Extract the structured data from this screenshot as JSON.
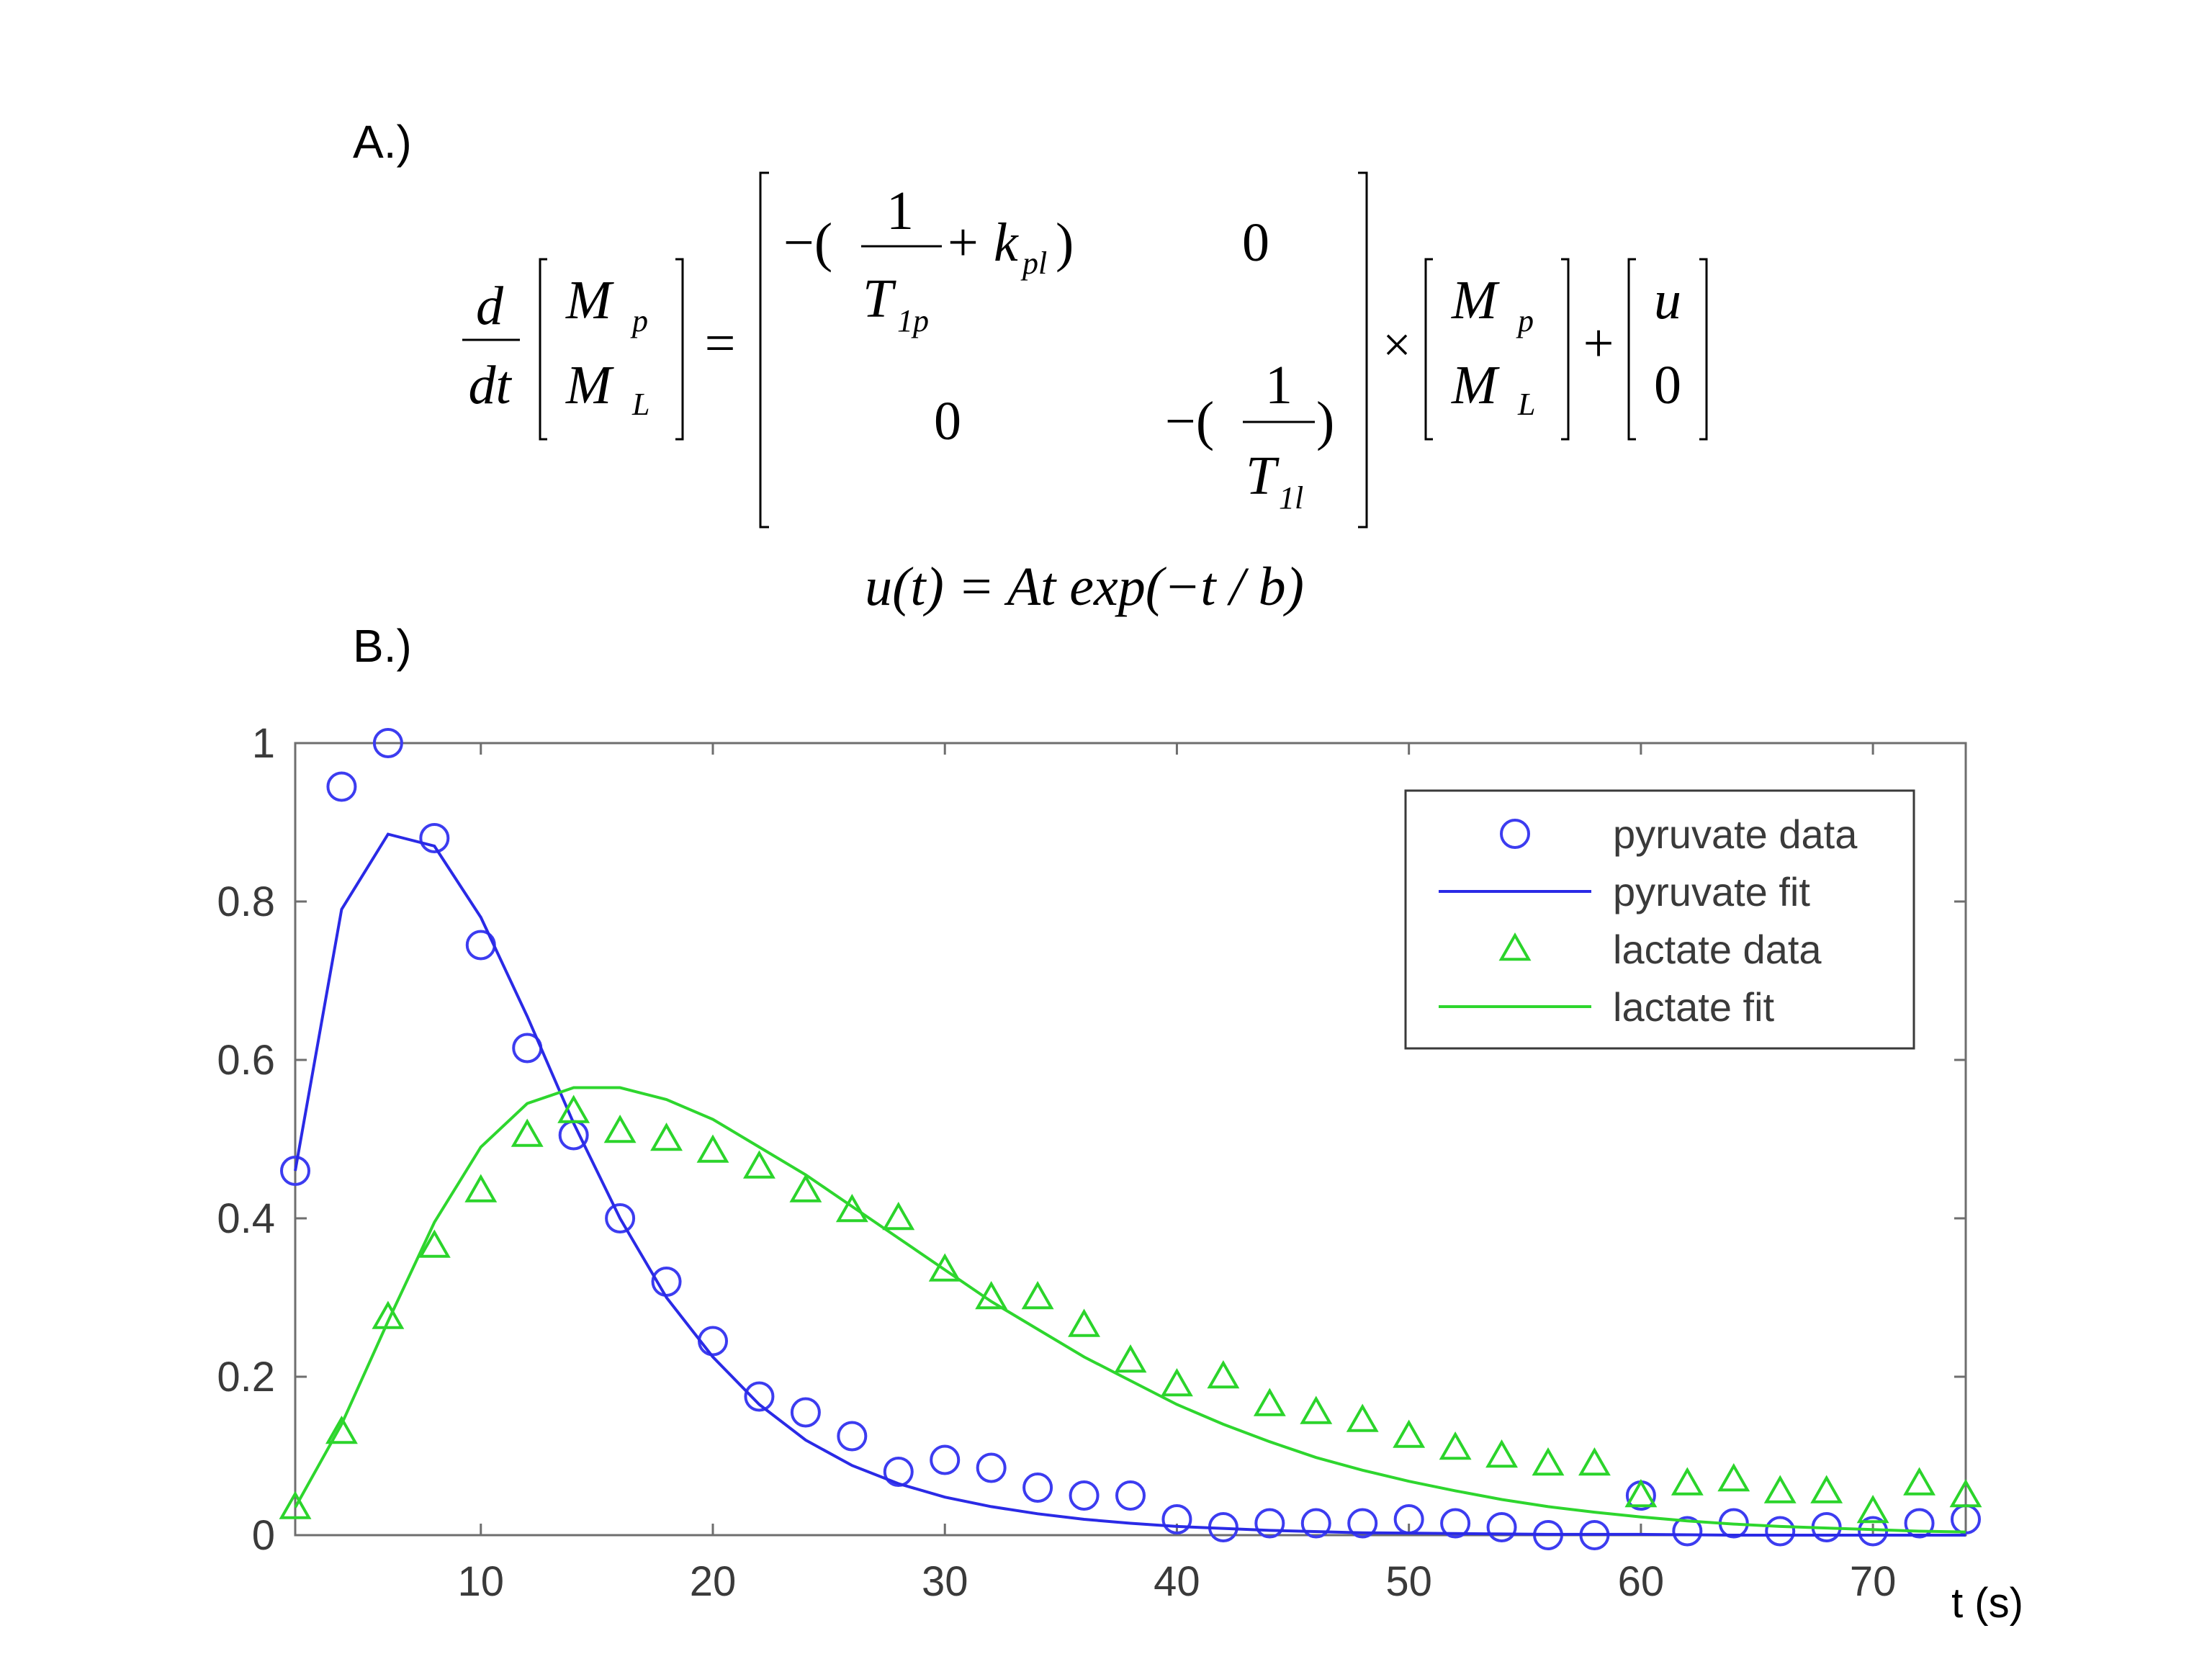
{
  "panel_a_label": "A.)",
  "panel_b_label": "B.)",
  "equation": {
    "lhs_numerator": "d",
    "lhs_denominator": "dt",
    "vector_p": "M",
    "vector_p_sub": "p",
    "vector_l": "M",
    "vector_l_sub": "L",
    "equals": "=",
    "m11_minus": "−(",
    "m11_num": "1",
    "m11_den": "T",
    "m11_den_sub": "1p",
    "m11_plus": "+",
    "m11_k": "k",
    "m11_k_sub": "pl",
    "m11_close": ")",
    "m12": "0",
    "m21": "0",
    "m22_minus": "−(",
    "m22_num": "1",
    "m22_den": "T",
    "m22_den_sub": "1l",
    "m22_close": ")",
    "times": "×",
    "plus": "+",
    "input_top": "u",
    "input_bottom": "0",
    "input_function": "u(t) = At exp(−t / b)"
  },
  "chart_data": {
    "type": "scatter",
    "xlabel": "t (s)",
    "ylabel": "",
    "xlim": [
      2,
      74
    ],
    "ylim": [
      0,
      1
    ],
    "xticks": [
      10,
      20,
      30,
      40,
      50,
      60,
      70
    ],
    "yticks": [
      0,
      0.2,
      0.4,
      0.6,
      0.8,
      1
    ],
    "ytick_labels": [
      "0",
      "0.2",
      "0.4",
      "0.6",
      "0.8",
      "1"
    ],
    "legend_position": "top-right",
    "series": [
      {
        "name": "pyruvate data",
        "kind": "markers",
        "marker": "circle",
        "color": "#3c3cf0",
        "x": [
          2,
          4,
          6,
          8,
          10,
          12,
          14,
          16,
          18,
          20,
          22,
          24,
          26,
          28,
          30,
          32,
          34,
          36,
          38,
          40,
          42,
          44,
          46,
          48,
          50,
          52,
          54,
          56,
          58,
          60,
          62,
          64,
          66,
          68,
          70,
          72,
          74
        ],
        "y": [
          0.46,
          0.945,
          1.0,
          0.88,
          0.745,
          0.615,
          0.505,
          0.4,
          0.32,
          0.245,
          0.175,
          0.155,
          0.125,
          0.08,
          0.095,
          0.085,
          0.06,
          0.05,
          0.05,
          0.02,
          0.01,
          0.015,
          0.015,
          0.015,
          0.02,
          0.015,
          0.01,
          0.0,
          0.0,
          0.05,
          0.005,
          0.015,
          0.005,
          0.01,
          0.005,
          0.015,
          0.02
        ]
      },
      {
        "name": "pyruvate fit",
        "kind": "line",
        "color": "#2a2ae6",
        "x": [
          2,
          4,
          6,
          8,
          10,
          12,
          14,
          16,
          18,
          20,
          22,
          24,
          26,
          28,
          30,
          32,
          34,
          36,
          38,
          40,
          44,
          48,
          52,
          56,
          60,
          64,
          68,
          72,
          74
        ],
        "y": [
          0.46,
          0.79,
          0.885,
          0.87,
          0.78,
          0.655,
          0.52,
          0.4,
          0.3,
          0.225,
          0.165,
          0.12,
          0.088,
          0.065,
          0.048,
          0.036,
          0.027,
          0.02,
          0.015,
          0.011,
          0.006,
          0.003,
          0.002,
          0.001,
          0.001,
          0.0,
          0.0,
          0.0,
          0.0
        ]
      },
      {
        "name": "lactate data",
        "kind": "markers",
        "marker": "triangle",
        "color": "#2bd42b",
        "x": [
          2,
          4,
          6,
          8,
          10,
          12,
          14,
          16,
          18,
          20,
          22,
          24,
          26,
          28,
          30,
          32,
          34,
          36,
          38,
          40,
          42,
          44,
          46,
          48,
          50,
          52,
          54,
          56,
          58,
          60,
          62,
          64,
          66,
          68,
          70,
          72,
          74
        ],
        "y": [
          0.035,
          0.13,
          0.275,
          0.365,
          0.435,
          0.505,
          0.535,
          0.51,
          0.5,
          0.485,
          0.465,
          0.435,
          0.41,
          0.4,
          0.335,
          0.3,
          0.3,
          0.265,
          0.22,
          0.19,
          0.2,
          0.165,
          0.155,
          0.145,
          0.125,
          0.11,
          0.1,
          0.09,
          0.09,
          0.05,
          0.065,
          0.07,
          0.055,
          0.055,
          0.03,
          0.065,
          0.05
        ]
      },
      {
        "name": "lactate fit",
        "kind": "line",
        "color": "#2ed62e",
        "x": [
          2,
          4,
          6,
          8,
          10,
          12,
          14,
          16,
          18,
          20,
          22,
          24,
          26,
          28,
          30,
          32,
          34,
          36,
          38,
          40,
          42,
          44,
          46,
          48,
          50,
          52,
          54,
          56,
          58,
          60,
          62,
          64,
          66,
          68,
          70,
          72,
          74
        ],
        "y": [
          0.035,
          0.14,
          0.27,
          0.395,
          0.49,
          0.545,
          0.565,
          0.565,
          0.55,
          0.525,
          0.49,
          0.455,
          0.415,
          0.375,
          0.335,
          0.295,
          0.26,
          0.225,
          0.195,
          0.165,
          0.14,
          0.118,
          0.098,
          0.082,
          0.068,
          0.056,
          0.045,
          0.036,
          0.029,
          0.023,
          0.018,
          0.014,
          0.011,
          0.009,
          0.007,
          0.005,
          0.004
        ]
      }
    ]
  }
}
